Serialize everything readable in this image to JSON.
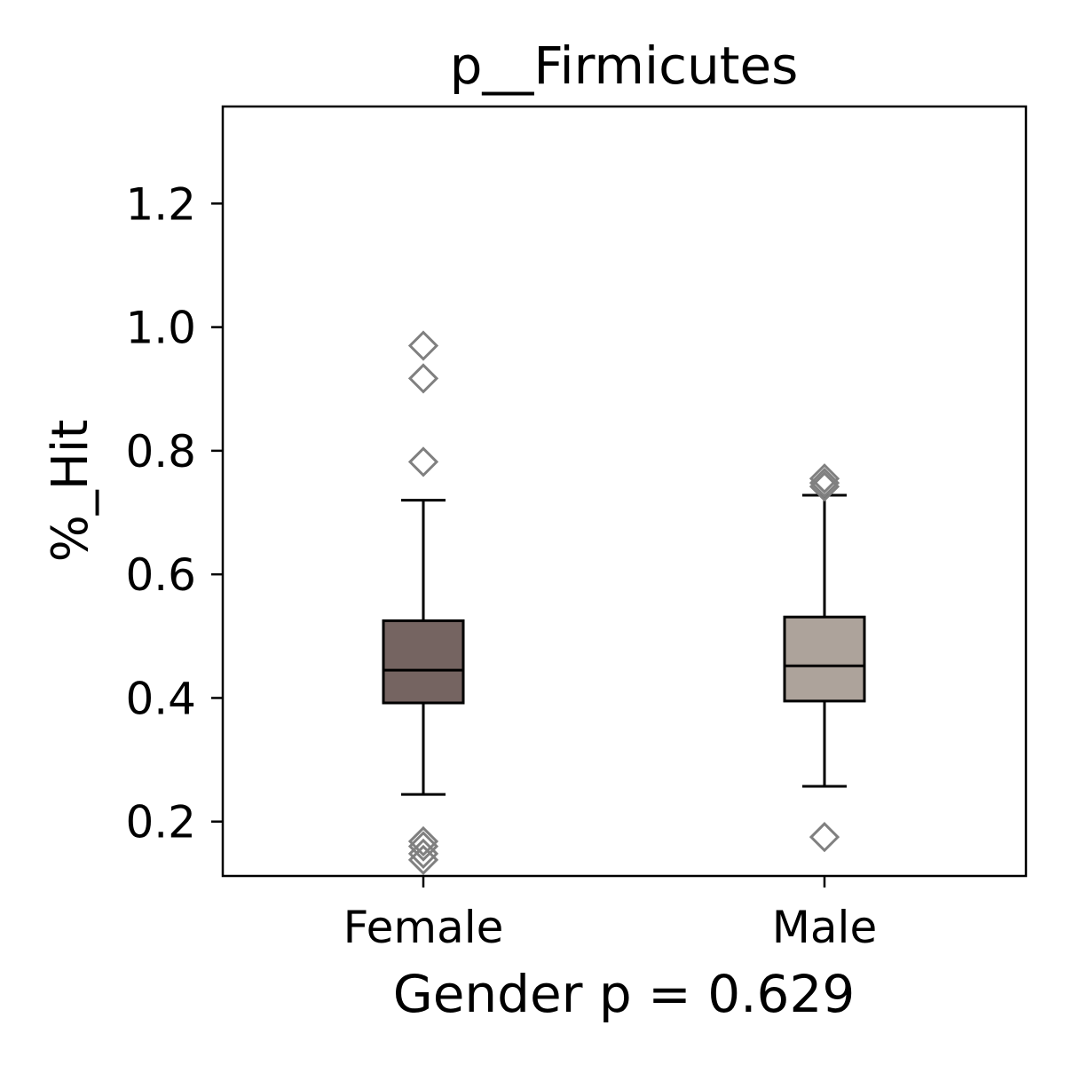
{
  "chart_data": {
    "type": "box",
    "title": "p__Firmicutes",
    "xlabel": "Gender p = 0.629",
    "ylabel": "%_Hit",
    "ylim": [
      0.112,
      1.357
    ],
    "yticks": [
      0.2,
      0.4,
      0.6,
      0.8,
      1.0,
      1.2
    ],
    "ytick_labels": [
      "0.2",
      "0.4",
      "0.6",
      "0.8",
      "1.0",
      "1.2"
    ],
    "grid": false,
    "categories": [
      "Female",
      "Male"
    ],
    "boxes": [
      {
        "name": "Female",
        "color": "#756461",
        "whisker_low": 0.244,
        "q1": 0.392,
        "median": 0.445,
        "q3": 0.525,
        "whisker_high": 0.72,
        "outliers": [
          0.97,
          0.917,
          0.782,
          0.168,
          0.16,
          0.148,
          0.138
        ]
      },
      {
        "name": "Male",
        "color": "#ada39b",
        "whisker_low": 0.257,
        "q1": 0.395,
        "median": 0.452,
        "q3": 0.531,
        "whisker_high": 0.728,
        "outliers": [
          0.755,
          0.748,
          0.742,
          0.175
        ]
      }
    ],
    "outlier_marker": "diamond",
    "outlier_color": "#808080"
  }
}
